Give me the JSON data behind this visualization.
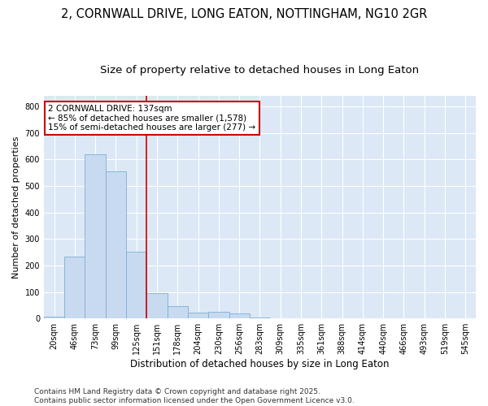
{
  "title1": "2, CORNWALL DRIVE, LONG EATON, NOTTINGHAM, NG10 2GR",
  "title2": "Size of property relative to detached houses in Long Eaton",
  "xlabel": "Distribution of detached houses by size in Long Eaton",
  "ylabel": "Number of detached properties",
  "categories": [
    "20sqm",
    "46sqm",
    "73sqm",
    "99sqm",
    "125sqm",
    "151sqm",
    "178sqm",
    "204sqm",
    "230sqm",
    "256sqm",
    "283sqm",
    "309sqm",
    "335sqm",
    "361sqm",
    "388sqm",
    "414sqm",
    "440sqm",
    "466sqm",
    "493sqm",
    "519sqm",
    "545sqm"
  ],
  "values": [
    8,
    232,
    618,
    555,
    252,
    96,
    48,
    22,
    24,
    18,
    5,
    1,
    0,
    0,
    0,
    0,
    0,
    0,
    0,
    0,
    0
  ],
  "bar_color": "#c8daf0",
  "bar_edge_color": "#7bafd4",
  "vline_color": "#cc0000",
  "annotation_line1": "2 CORNWALL DRIVE: 137sqm",
  "annotation_line2": "← 85% of detached houses are smaller (1,578)",
  "annotation_line3": "15% of semi-detached houses are larger (277) →",
  "annotation_box_color": "#cc0000",
  "ylim": [
    0,
    840
  ],
  "yticks": [
    0,
    100,
    200,
    300,
    400,
    500,
    600,
    700,
    800
  ],
  "fig_background": "#ffffff",
  "plot_background": "#dce8f5",
  "grid_color": "#ffffff",
  "footer_line1": "Contains HM Land Registry data © Crown copyright and database right 2025.",
  "footer_line2": "Contains public sector information licensed under the Open Government Licence v3.0.",
  "title1_fontsize": 10.5,
  "title2_fontsize": 9.5,
  "xlabel_fontsize": 8.5,
  "ylabel_fontsize": 8,
  "tick_fontsize": 7,
  "annotation_fontsize": 7.5,
  "footer_fontsize": 6.5
}
